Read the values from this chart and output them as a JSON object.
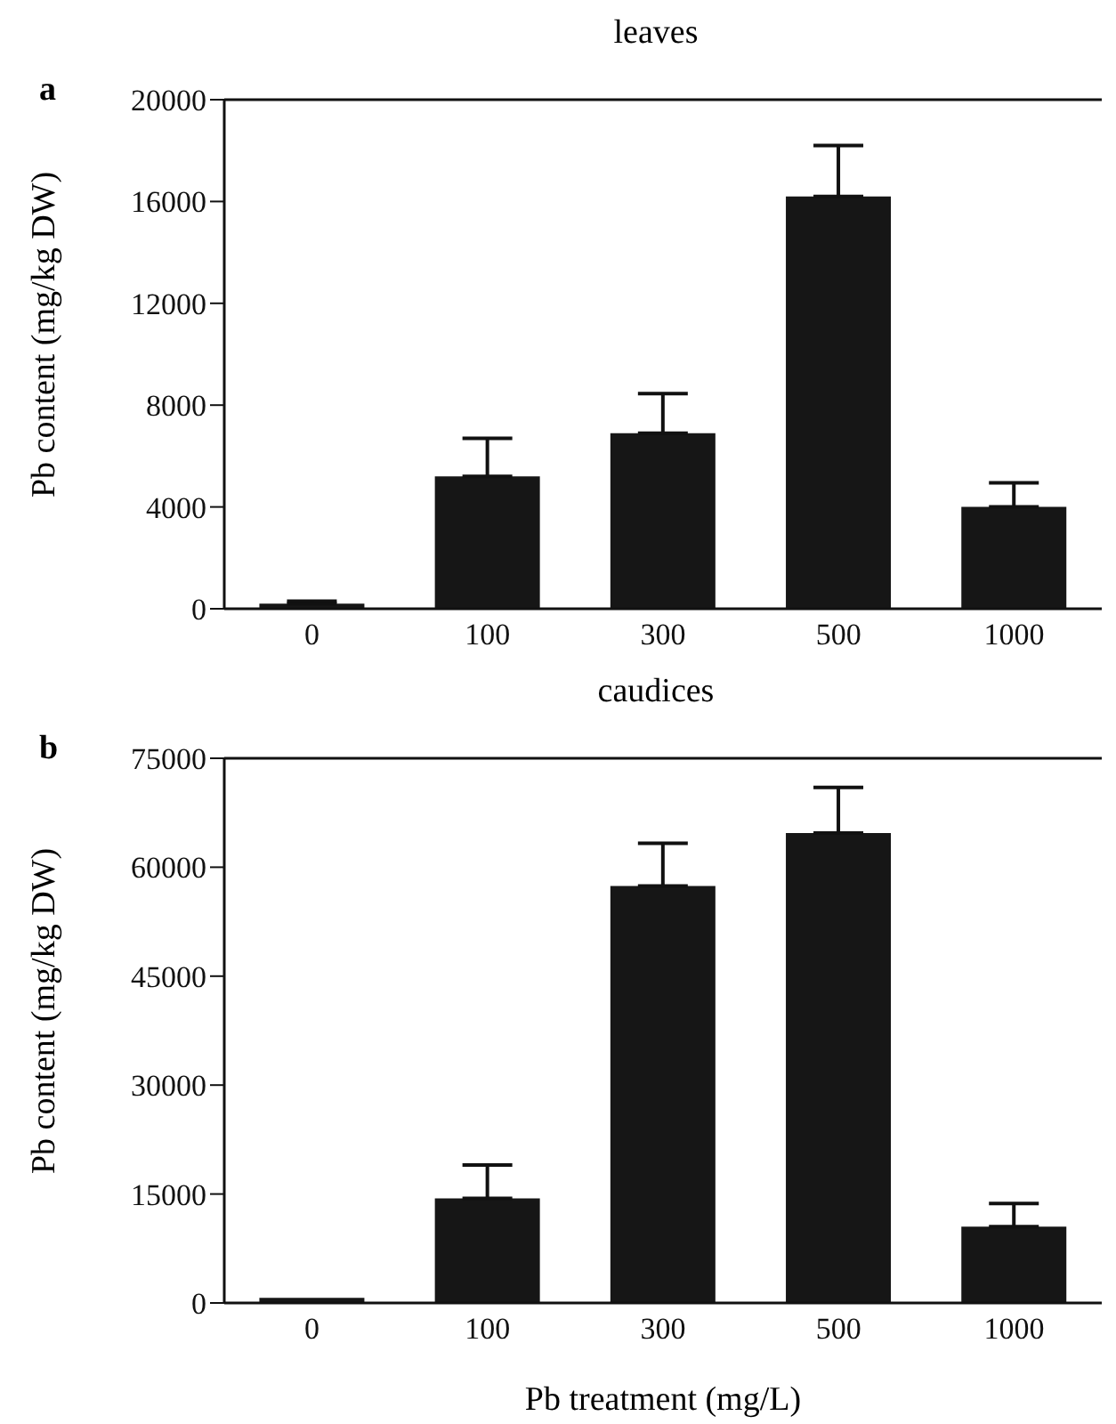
{
  "chart_data": [
    {
      "type": "bar",
      "title": "leaves",
      "annotations": [
        "a"
      ],
      "ylabel": "Pb content (mg/kg DW)",
      "categories": [
        "0",
        "100",
        "300",
        "500",
        "1000"
      ],
      "color": "#161616",
      "values": [
        200,
        5200,
        6900,
        16200,
        4000
      ],
      "errors": [
        [
          200,
          300
        ],
        [
          5200,
          6700
        ],
        [
          6900,
          8450
        ],
        [
          16200,
          18200
        ],
        [
          4000,
          4950
        ]
      ],
      "ylim": [
        0,
        20000
      ],
      "yticks": [
        0,
        4000,
        8000,
        12000,
        16000,
        20000
      ],
      "grid": false,
      "legend": false
    },
    {
      "type": "bar",
      "title": "caudices",
      "annotations": [
        "b"
      ],
      "xlabel": "Pb treatment (mg/L)",
      "ylabel": "Pb content (mg/kg DW)",
      "categories": [
        "0",
        "100",
        "300",
        "500",
        "1000"
      ],
      "color": "#161616",
      "values": [
        700,
        14400,
        57400,
        64700,
        10500
      ],
      "errors": [
        null,
        [
          14400,
          19000
        ],
        [
          57400,
          63300
        ],
        [
          64700,
          71000
        ],
        [
          10500,
          13700
        ]
      ],
      "ylim": [
        0,
        75000
      ],
      "yticks": [
        0,
        15000,
        30000,
        45000,
        60000,
        75000
      ],
      "grid": false,
      "legend": false
    }
  ]
}
